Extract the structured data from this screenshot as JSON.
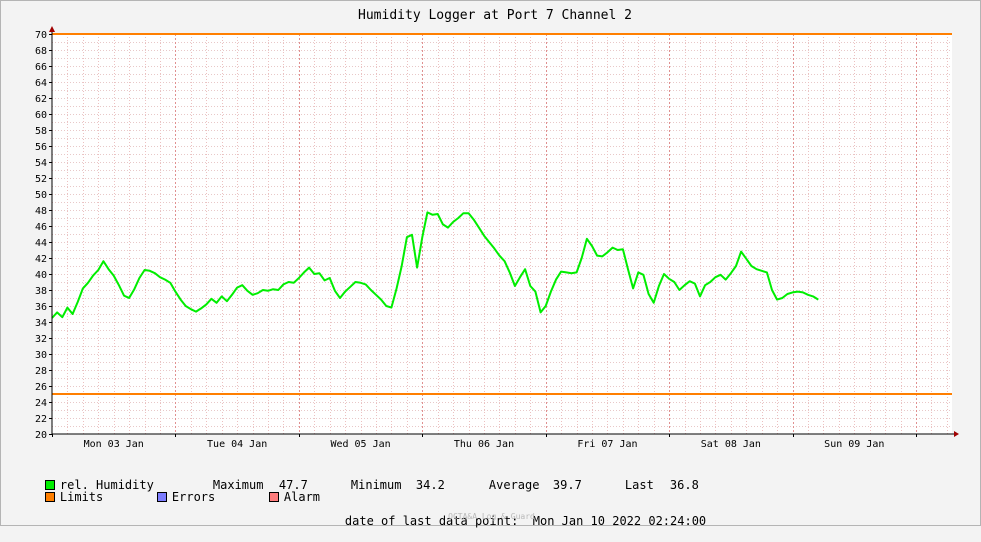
{
  "chart_data": {
    "type": "line",
    "title": "Humidity Logger at Port 7 Channel 2",
    "ylim": [
      20,
      70
    ],
    "y_ticks": [
      20,
      22,
      24,
      26,
      28,
      30,
      32,
      34,
      36,
      38,
      40,
      42,
      44,
      46,
      48,
      50,
      52,
      54,
      56,
      58,
      60,
      62,
      64,
      66,
      68,
      70
    ],
    "x_range_hours": [
      0,
      175
    ],
    "x_ticks": [
      {
        "label": "Mon 03 Jan",
        "hour": 12
      },
      {
        "label": "Tue 04 Jan",
        "hour": 36
      },
      {
        "label": "Wed 05 Jan",
        "hour": 60
      },
      {
        "label": "Thu 06 Jan",
        "hour": 84
      },
      {
        "label": "Fri 07 Jan",
        "hour": 108
      },
      {
        "label": "Sat 08 Jan",
        "hour": 132
      },
      {
        "label": "Sun 09 Jan",
        "hour": 156
      }
    ],
    "grid": true,
    "limits": {
      "upper": 70,
      "lower": 25,
      "color": "#ff7f00"
    },
    "series": [
      {
        "name": "rel. Humidity",
        "color": "#00ee00",
        "points": [
          [
            0,
            34.5
          ],
          [
            1,
            35.2
          ],
          [
            2,
            34.6
          ],
          [
            3,
            35.8
          ],
          [
            4,
            35.0
          ],
          [
            5,
            36.5
          ],
          [
            6,
            38.2
          ],
          [
            7,
            38.9
          ],
          [
            8,
            39.8
          ],
          [
            9,
            40.5
          ],
          [
            10,
            41.6
          ],
          [
            11,
            40.6
          ],
          [
            12,
            39.8
          ],
          [
            13,
            38.6
          ],
          [
            14,
            37.3
          ],
          [
            15,
            37.0
          ],
          [
            16,
            38.1
          ],
          [
            17,
            39.5
          ],
          [
            18,
            40.5
          ],
          [
            19,
            40.4
          ],
          [
            20,
            40.1
          ],
          [
            21,
            39.6
          ],
          [
            22,
            39.3
          ],
          [
            23,
            38.9
          ],
          [
            24,
            37.8
          ],
          [
            25,
            36.8
          ],
          [
            26,
            36.0
          ],
          [
            27,
            35.6
          ],
          [
            28,
            35.3
          ],
          [
            29,
            35.7
          ],
          [
            30,
            36.2
          ],
          [
            31,
            36.9
          ],
          [
            32,
            36.4
          ],
          [
            33,
            37.2
          ],
          [
            34,
            36.6
          ],
          [
            35,
            37.4
          ],
          [
            36,
            38.3
          ],
          [
            37,
            38.6
          ],
          [
            38,
            37.9
          ],
          [
            39,
            37.4
          ],
          [
            40,
            37.6
          ],
          [
            41,
            38.0
          ],
          [
            42,
            37.9
          ],
          [
            43,
            38.1
          ],
          [
            44,
            38.0
          ],
          [
            45,
            38.7
          ],
          [
            46,
            39.0
          ],
          [
            47,
            38.9
          ],
          [
            48,
            39.5
          ],
          [
            49,
            40.2
          ],
          [
            50,
            40.8
          ],
          [
            51,
            40.0
          ],
          [
            52,
            40.1
          ],
          [
            53,
            39.2
          ],
          [
            54,
            39.5
          ],
          [
            55,
            37.9
          ],
          [
            56,
            37.0
          ],
          [
            57,
            37.8
          ],
          [
            58,
            38.4
          ],
          [
            59,
            39.0
          ],
          [
            60,
            38.9
          ],
          [
            61,
            38.7
          ],
          [
            62,
            38.0
          ],
          [
            63,
            37.4
          ],
          [
            64,
            36.8
          ],
          [
            65,
            36.0
          ],
          [
            66,
            35.8
          ],
          [
            67,
            38.2
          ],
          [
            68,
            41.0
          ],
          [
            69,
            44.6
          ],
          [
            70,
            44.9
          ],
          [
            71,
            40.8
          ],
          [
            72,
            44.6
          ],
          [
            73,
            47.7
          ],
          [
            74,
            47.4
          ],
          [
            75,
            47.5
          ],
          [
            76,
            46.2
          ],
          [
            77,
            45.8
          ],
          [
            78,
            46.5
          ],
          [
            79,
            47.0
          ],
          [
            80,
            47.6
          ],
          [
            81,
            47.6
          ],
          [
            82,
            46.8
          ],
          [
            83,
            45.8
          ],
          [
            84,
            44.8
          ],
          [
            85,
            44.0
          ],
          [
            86,
            43.2
          ],
          [
            87,
            42.3
          ],
          [
            88,
            41.6
          ],
          [
            89,
            40.2
          ],
          [
            90,
            38.5
          ],
          [
            91,
            39.6
          ],
          [
            92,
            40.6
          ],
          [
            93,
            38.5
          ],
          [
            94,
            37.8
          ],
          [
            95,
            35.2
          ],
          [
            96,
            36.0
          ],
          [
            97,
            37.8
          ],
          [
            98,
            39.3
          ],
          [
            99,
            40.3
          ],
          [
            100,
            40.2
          ],
          [
            101,
            40.1
          ],
          [
            102,
            40.2
          ],
          [
            103,
            42.0
          ],
          [
            104,
            44.4
          ],
          [
            105,
            43.5
          ],
          [
            106,
            42.3
          ],
          [
            107,
            42.2
          ],
          [
            108,
            42.7
          ],
          [
            109,
            43.3
          ],
          [
            110,
            43.0
          ],
          [
            111,
            43.1
          ],
          [
            112,
            40.6
          ],
          [
            113,
            38.2
          ],
          [
            114,
            40.2
          ],
          [
            115,
            39.9
          ],
          [
            116,
            37.5
          ],
          [
            117,
            36.4
          ],
          [
            118,
            38.5
          ],
          [
            119,
            40.0
          ],
          [
            120,
            39.4
          ],
          [
            121,
            39.0
          ],
          [
            122,
            38.0
          ],
          [
            123,
            38.6
          ],
          [
            124,
            39.1
          ],
          [
            125,
            38.8
          ],
          [
            126,
            37.2
          ],
          [
            127,
            38.6
          ],
          [
            128,
            39.0
          ],
          [
            129,
            39.6
          ],
          [
            130,
            39.9
          ],
          [
            131,
            39.3
          ],
          [
            132,
            40.1
          ],
          [
            133,
            41.0
          ],
          [
            134,
            42.8
          ],
          [
            135,
            41.9
          ],
          [
            136,
            41.0
          ],
          [
            137,
            40.6
          ],
          [
            138,
            40.4
          ],
          [
            139,
            40.2
          ],
          [
            140,
            38.0
          ],
          [
            141,
            36.8
          ],
          [
            142,
            37.0
          ],
          [
            143,
            37.5
          ],
          [
            144,
            37.7
          ],
          [
            145,
            37.8
          ],
          [
            146,
            37.7
          ],
          [
            147,
            37.4
          ],
          [
            148,
            37.2
          ],
          [
            149,
            36.8
          ]
        ]
      }
    ],
    "maximum": "47.7",
    "minimum": "34.2",
    "average": "39.7",
    "last": "36.8"
  },
  "legend": {
    "humidity": {
      "label": "rel. Humidity",
      "color": "#00ee00"
    },
    "limits": {
      "label": "Limits",
      "color": "#ff7f00"
    },
    "errors": {
      "label": "Errors",
      "color": "#7d7dff"
    },
    "alarm": {
      "label": "Alarm",
      "color": "#ff7d7d"
    },
    "maximum_label": "Maximum",
    "minimum_label": "Minimum",
    "average_label": "Average",
    "last_label": "Last"
  },
  "footer": {
    "last_point_label": "date of last data point:",
    "last_point_value": "Mon Jan 10 2022 02:24:00",
    "watermark": "OCTA&A Log & Guard"
  }
}
